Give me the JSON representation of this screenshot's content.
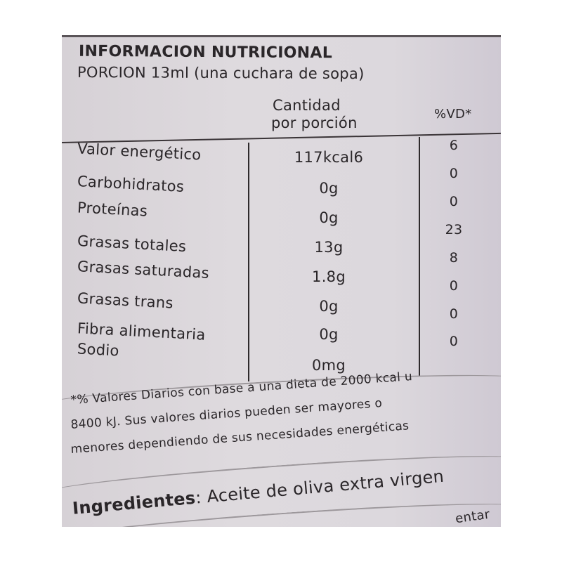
{
  "title": "INFORMACION NUTRICIONAL",
  "serving": "PORCION 13ml (una cuchara de sopa)",
  "columns": {
    "amount_line1": "Cantidad",
    "amount_line2": "por porción",
    "dv": "%VD*"
  },
  "rows": [
    {
      "name": "Valor energético",
      "amount": "117kcal6",
      "dv": "6"
    },
    {
      "name": "Carbohidratos",
      "amount": "0g",
      "dv": "0"
    },
    {
      "name": "Proteínas",
      "amount": "0g",
      "dv": "0"
    },
    {
      "name": "Grasas totales",
      "amount": "13g",
      "dv": "23"
    },
    {
      "name": "Grasas saturadas",
      "amount": "1.8g",
      "dv": "8"
    },
    {
      "name": "Grasas trans",
      "amount": "0g",
      "dv": "0"
    },
    {
      "name": "Fibra alimentaria",
      "amount": "0g",
      "dv": "0"
    },
    {
      "name": "Sodio",
      "amount": "0mg",
      "dv": "0"
    }
  ],
  "footnote": [
    "*% Valores Diarios con base a una dieta de 2000 kcal u",
    "8400 kJ. Sus valores diarios pueden ser mayores o",
    "menores dependiendo de sus necesidades energéticas"
  ],
  "ingredients": {
    "label": "Ingredientes",
    "text": ": Aceite de oliva extra virgen"
  },
  "cut_text": "entar"
}
